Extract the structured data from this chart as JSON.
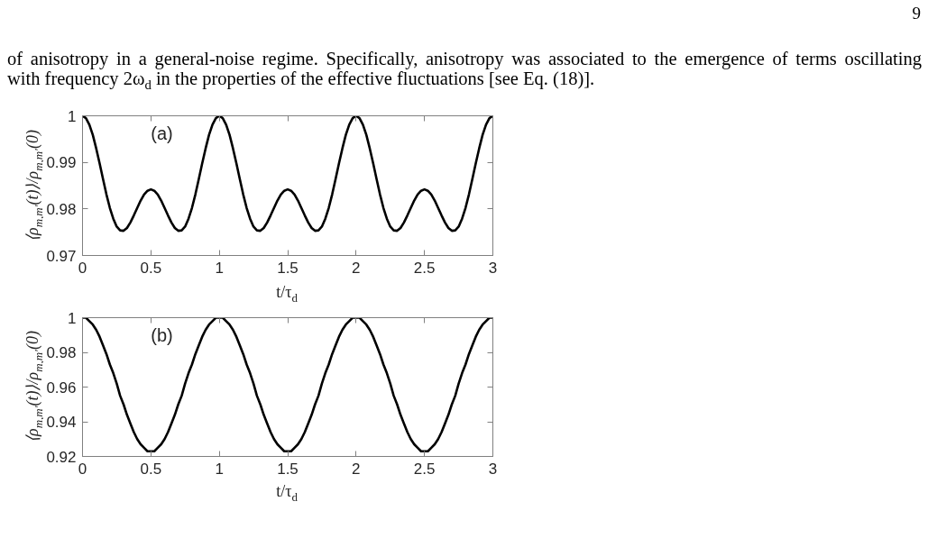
{
  "chart_data": [
    {
      "type": "line",
      "title": "(a)",
      "xlabel": "t/τ$_{d}$",
      "ylabel": "⟨ρ$_{m,m′}$(t)⟩/ρ$_{m,m′}$(0)",
      "annotations": [
        "9",
        "of anisotropy in a general-noise regime. Specifically, anisotropy was associated to the emergence of terms oscillating",
        "with frequency 2ω$_{d}$ in the properties of the effective fluctuations [see Eq. (18)]."
      ],
      "x": [
        0,
        0.025,
        0.05,
        0.075,
        0.1,
        0.125,
        0.15,
        0.175,
        0.2,
        0.225,
        0.25,
        0.275,
        0.3,
        0.325,
        0.35,
        0.375,
        0.4,
        0.425,
        0.45,
        0.475,
        0.5,
        0.525,
        0.55,
        0.575,
        0.6,
        0.625,
        0.65,
        0.675,
        0.7,
        0.725,
        0.75,
        0.775,
        0.8,
        0.825,
        0.85,
        0.875,
        0.9,
        0.925,
        0.95,
        0.975,
        1,
        1.025,
        1.05,
        1.075,
        1.1,
        1.125,
        1.15,
        1.175,
        1.2,
        1.225,
        1.25,
        1.275,
        1.3,
        1.325,
        1.35,
        1.375,
        1.4,
        1.425,
        1.45,
        1.475,
        1.5,
        1.525,
        1.55,
        1.575,
        1.6,
        1.625,
        1.65,
        1.675,
        1.7,
        1.725,
        1.75,
        1.775,
        1.8,
        1.825,
        1.85,
        1.875,
        1.9,
        1.925,
        1.95,
        1.975,
        2,
        2.025,
        2.05,
        2.075,
        2.1,
        2.125,
        2.15,
        2.175,
        2.2,
        2.225,
        2.25,
        2.275,
        2.3,
        2.325,
        2.35,
        2.375,
        2.4,
        2.425,
        2.45,
        2.475,
        2.5,
        2.525,
        2.55,
        2.575,
        2.6,
        2.625,
        2.65,
        2.675,
        2.7,
        2.725,
        2.75,
        2.775,
        2.8,
        2.825,
        2.85,
        2.875,
        2.9,
        2.925,
        2.95,
        2.975,
        3
      ],
      "series": [
        {
          "color": "#000000",
          "values": [
            1,
            0.9995,
            0.9981,
            0.9959,
            0.993,
            0.9898,
            0.9864,
            0.9831,
            0.9802,
            0.9779,
            0.9762,
            0.9754,
            0.9753,
            0.9759,
            0.9771,
            0.9786,
            0.9802,
            0.9818,
            0.9831,
            0.9839,
            0.9842,
            0.9839,
            0.9831,
            0.9818,
            0.9802,
            0.9786,
            0.9771,
            0.9759,
            0.9753,
            0.9754,
            0.9762,
            0.9779,
            0.9802,
            0.9831,
            0.9864,
            0.9898,
            0.993,
            0.9959,
            0.9981,
            0.9995,
            1,
            0.9995,
            0.9981,
            0.9959,
            0.993,
            0.9898,
            0.9864,
            0.9831,
            0.9802,
            0.9779,
            0.9762,
            0.9754,
            0.9753,
            0.9759,
            0.9771,
            0.9786,
            0.9802,
            0.9818,
            0.9831,
            0.9839,
            0.9842,
            0.9839,
            0.9831,
            0.9818,
            0.9802,
            0.9786,
            0.9771,
            0.9759,
            0.9753,
            0.9754,
            0.9762,
            0.9779,
            0.9802,
            0.9831,
            0.9864,
            0.9898,
            0.993,
            0.9959,
            0.9981,
            0.9995,
            1,
            0.9995,
            0.9981,
            0.9959,
            0.993,
            0.9898,
            0.9864,
            0.9831,
            0.9802,
            0.9779,
            0.9762,
            0.9754,
            0.9753,
            0.9759,
            0.9771,
            0.9786,
            0.9802,
            0.9818,
            0.9831,
            0.9839,
            0.9842,
            0.9839,
            0.9831,
            0.9818,
            0.9802,
            0.9786,
            0.9771,
            0.9759,
            0.9753,
            0.9754,
            0.9762,
            0.9779,
            0.9802,
            0.9831,
            0.9864,
            0.9898,
            0.993,
            0.9959,
            0.9981,
            0.9995,
            1
          ]
        }
      ],
      "xlim": [
        0,
        3
      ],
      "ylim": [
        0.97,
        1
      ],
      "xticks": [
        0,
        0.5,
        1,
        1.5,
        2,
        2.5,
        3
      ],
      "yticks": [
        0.97,
        0.98,
        0.99,
        1
      ]
    },
    {
      "type": "line",
      "title": "(b)",
      "xlabel": "t/τ$_{d}$",
      "ylabel": "⟨ρ$_{m,m′}$(t)⟩/ρ$_{m,m′}$(0)",
      "x": [
        0,
        0.025,
        0.05,
        0.075,
        0.1,
        0.125,
        0.15,
        0.175,
        0.2,
        0.225,
        0.25,
        0.275,
        0.3,
        0.325,
        0.35,
        0.375,
        0.4,
        0.425,
        0.45,
        0.475,
        0.5,
        0.525,
        0.55,
        0.575,
        0.6,
        0.625,
        0.65,
        0.675,
        0.7,
        0.725,
        0.75,
        0.775,
        0.8,
        0.825,
        0.85,
        0.875,
        0.9,
        0.925,
        0.95,
        0.975,
        1,
        1.025,
        1.05,
        1.075,
        1.1,
        1.125,
        1.15,
        1.175,
        1.2,
        1.225,
        1.25,
        1.275,
        1.3,
        1.325,
        1.35,
        1.375,
        1.4,
        1.425,
        1.45,
        1.475,
        1.5,
        1.525,
        1.55,
        1.575,
        1.6,
        1.625,
        1.65,
        1.675,
        1.7,
        1.725,
        1.75,
        1.775,
        1.8,
        1.825,
        1.85,
        1.875,
        1.9,
        1.925,
        1.95,
        1.975,
        2,
        2.025,
        2.05,
        2.075,
        2.1,
        2.125,
        2.15,
        2.175,
        2.2,
        2.225,
        2.25,
        2.275,
        2.3,
        2.325,
        2.35,
        2.375,
        2.4,
        2.425,
        2.45,
        2.475,
        2.5,
        2.525,
        2.55,
        2.575,
        2.6,
        2.625,
        2.65,
        2.675,
        2.7,
        2.725,
        2.75,
        2.775,
        2.8,
        2.825,
        2.85,
        2.875,
        2.9,
        2.925,
        2.95,
        2.975,
        3
      ],
      "series": [
        {
          "color": "#000000",
          "values": [
            1,
            1,
            0.998,
            0.996,
            0.993,
            0.989,
            0.984,
            0.979,
            0.973,
            0.968,
            0.962,
            0.955,
            0.95,
            0.944,
            0.939,
            0.934,
            0.93,
            0.927,
            0.925,
            0.923,
            0.923,
            0.923,
            0.925,
            0.927,
            0.93,
            0.934,
            0.939,
            0.944,
            0.95,
            0.955,
            0.962,
            0.968,
            0.973,
            0.979,
            0.984,
            0.989,
            0.993,
            0.996,
            0.998,
            1,
            1,
            1,
            0.998,
            0.996,
            0.993,
            0.989,
            0.984,
            0.979,
            0.973,
            0.968,
            0.962,
            0.955,
            0.95,
            0.944,
            0.939,
            0.934,
            0.93,
            0.927,
            0.925,
            0.923,
            0.923,
            0.923,
            0.925,
            0.927,
            0.93,
            0.934,
            0.939,
            0.944,
            0.95,
            0.955,
            0.962,
            0.968,
            0.973,
            0.979,
            0.984,
            0.989,
            0.993,
            0.996,
            0.998,
            1,
            1,
            1,
            0.998,
            0.996,
            0.993,
            0.989,
            0.984,
            0.979,
            0.973,
            0.968,
            0.962,
            0.955,
            0.95,
            0.944,
            0.939,
            0.934,
            0.93,
            0.927,
            0.925,
            0.923,
            0.923,
            0.923,
            0.925,
            0.927,
            0.93,
            0.934,
            0.939,
            0.944,
            0.95,
            0.955,
            0.962,
            0.968,
            0.973,
            0.979,
            0.984,
            0.989,
            0.993,
            0.996,
            0.998,
            1,
            1
          ]
        }
      ],
      "xlim": [
        0,
        3
      ],
      "ylim": [
        0.92,
        1
      ],
      "xticks": [
        0,
        0.5,
        1,
        1.5,
        2,
        2.5,
        3
      ],
      "yticks": [
        0.92,
        0.94,
        0.96,
        0.98,
        1
      ]
    }
  ]
}
